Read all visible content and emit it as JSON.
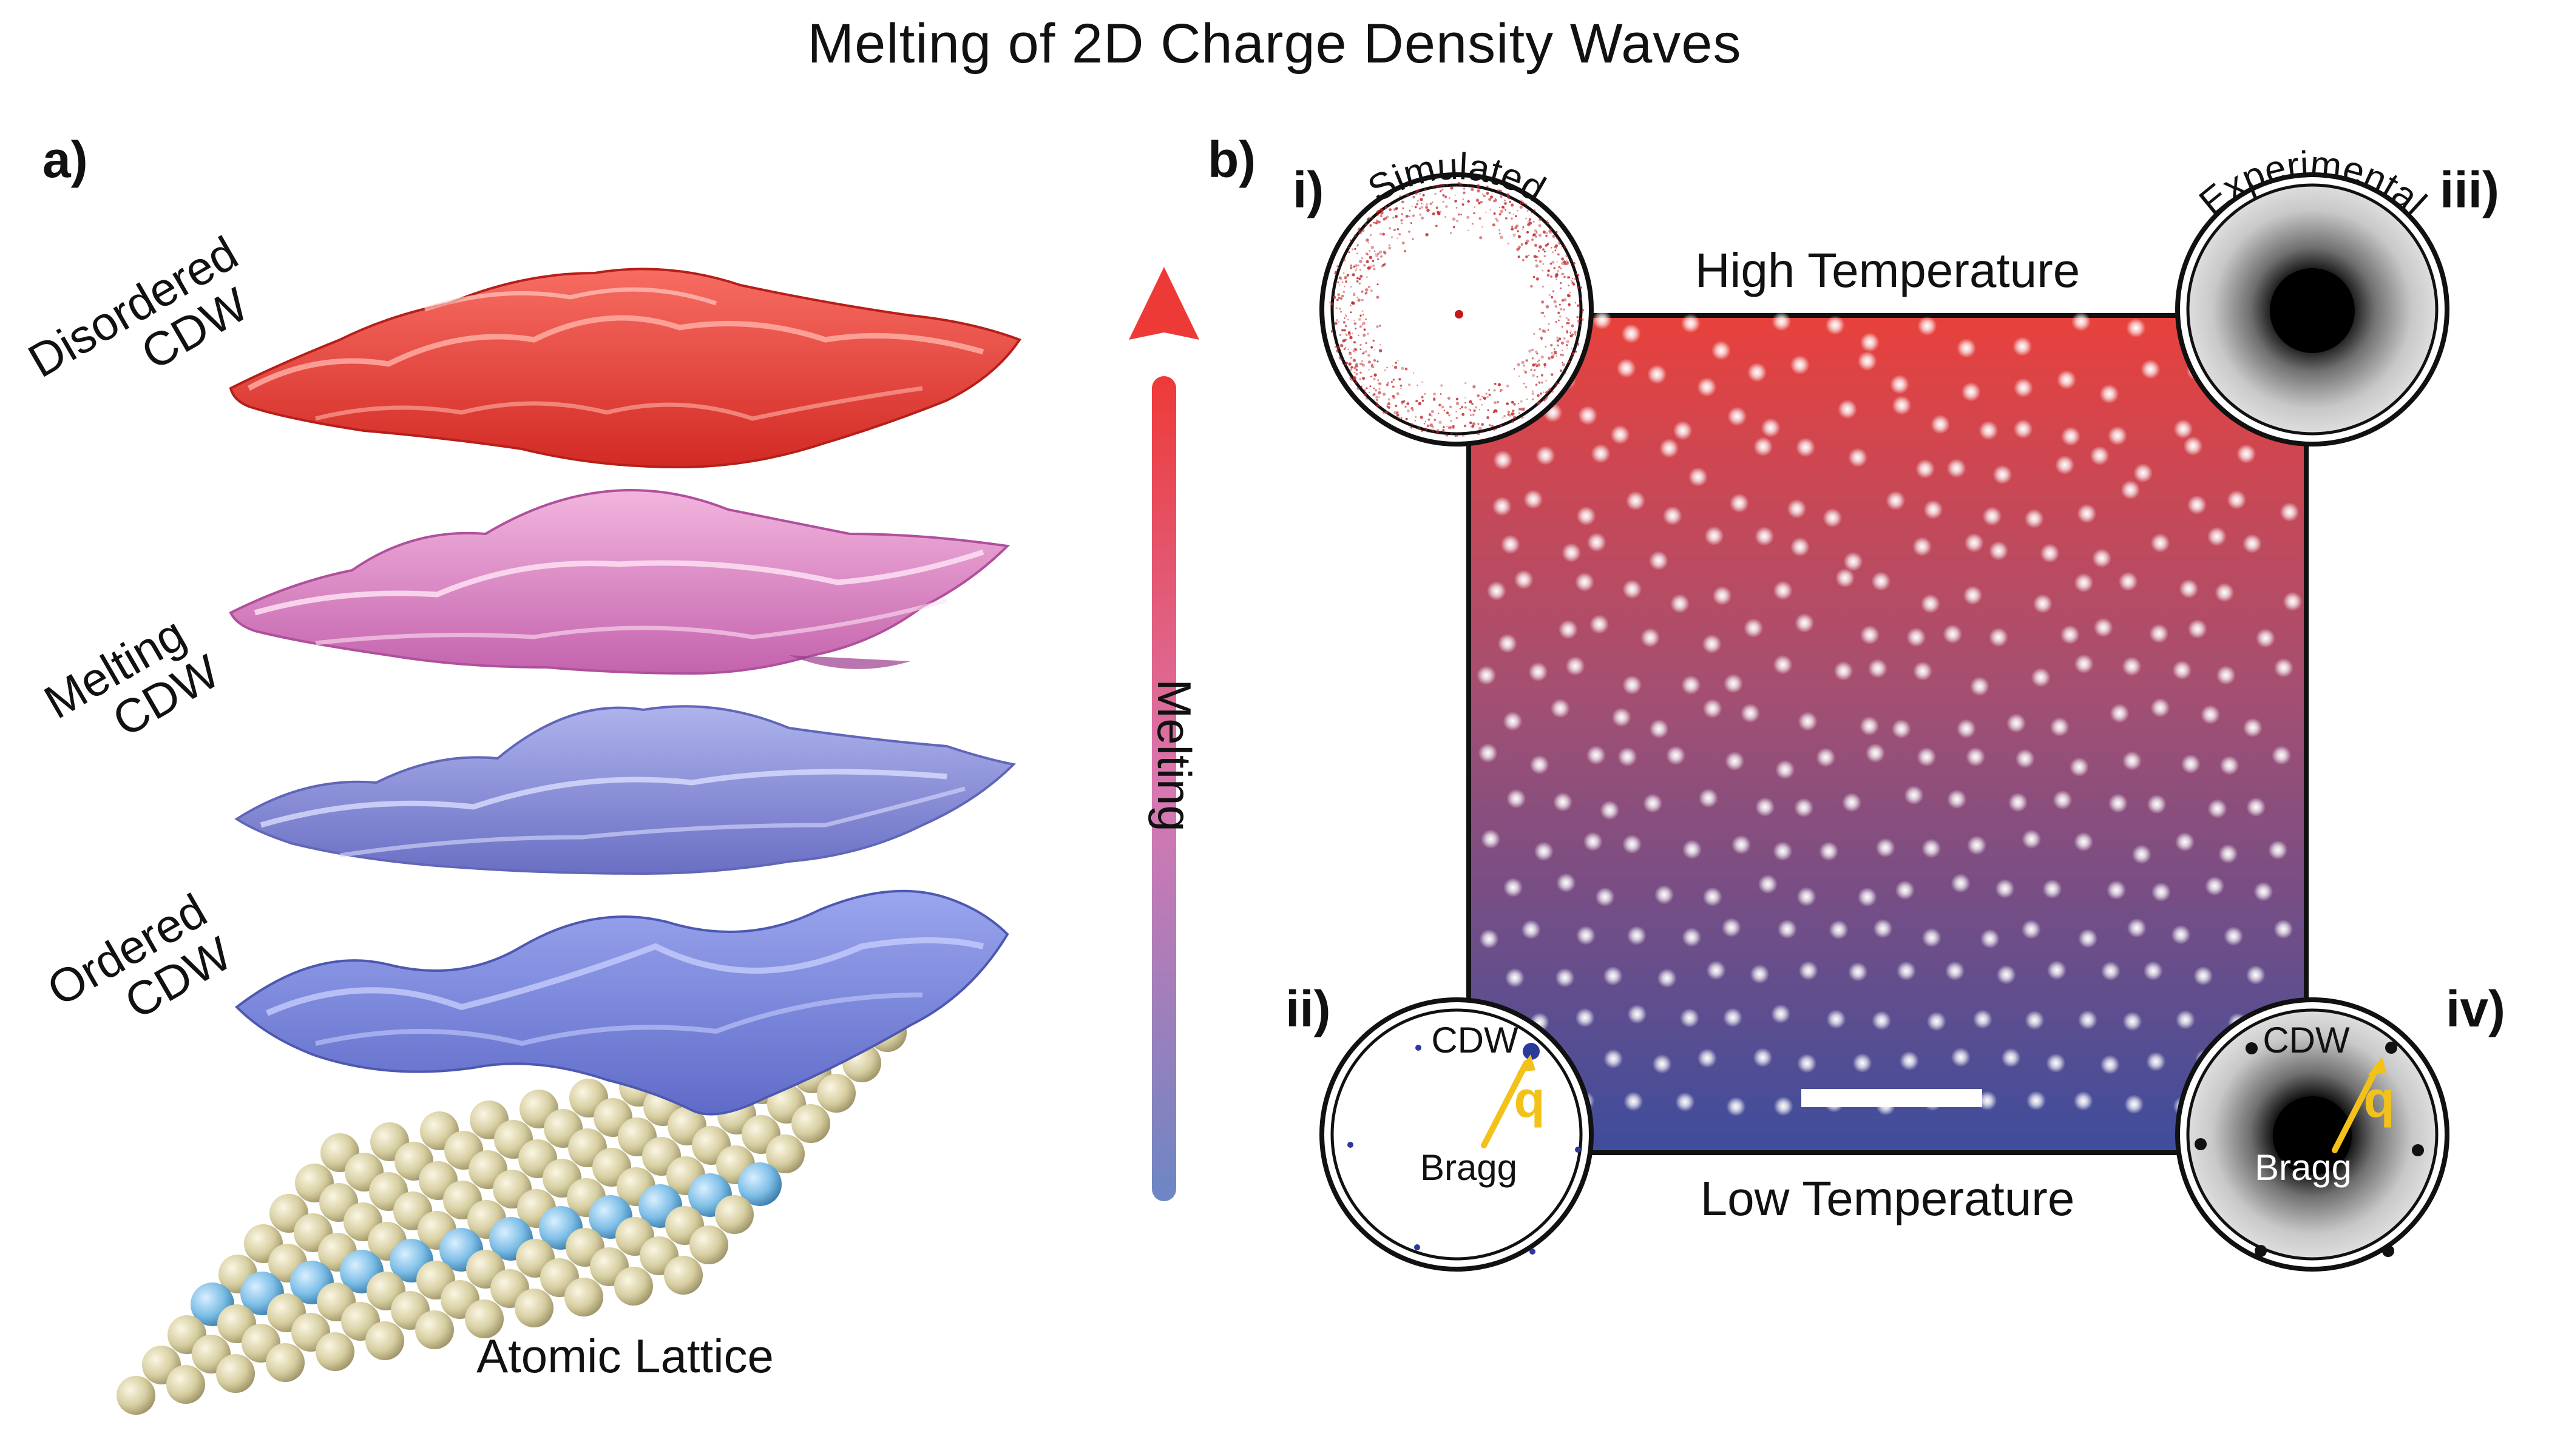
{
  "title": "Melting of 2D Charge Density Waves",
  "panel_a": {
    "label": "a)",
    "layers": [
      {
        "name": "Disordered",
        "sub": "CDW",
        "color": "#e7443e"
      },
      {
        "name": "Melting",
        "sub": "CDW",
        "color": "#d77ab8"
      },
      {
        "name": "Ordered",
        "sub": "CDW",
        "color": "#7a80cc"
      }
    ],
    "lattice_label": "Atomic Lattice",
    "arrow_label": "Melting",
    "arrow_colors": {
      "top": "#ee3a37",
      "bottom": "#6c86c4"
    }
  },
  "panel_b": {
    "label": "b)",
    "high_temp": "High Temperature",
    "low_temp": "Low Temperature",
    "insets": {
      "i": {
        "roman": "i)",
        "caption": "Simulated"
      },
      "ii": {
        "roman": "ii)",
        "cdw": "CDW",
        "q": "q",
        "bragg": "Bragg"
      },
      "iii": {
        "roman": "iii)",
        "caption": "Experimental"
      },
      "iv": {
        "roman": "iv)",
        "cdw": "CDW",
        "q": "q",
        "bragg": "Bragg"
      }
    },
    "gradient": {
      "top": "#e8413c",
      "bottom": "#3e4d9c"
    },
    "q_color": "#f2c21a"
  }
}
